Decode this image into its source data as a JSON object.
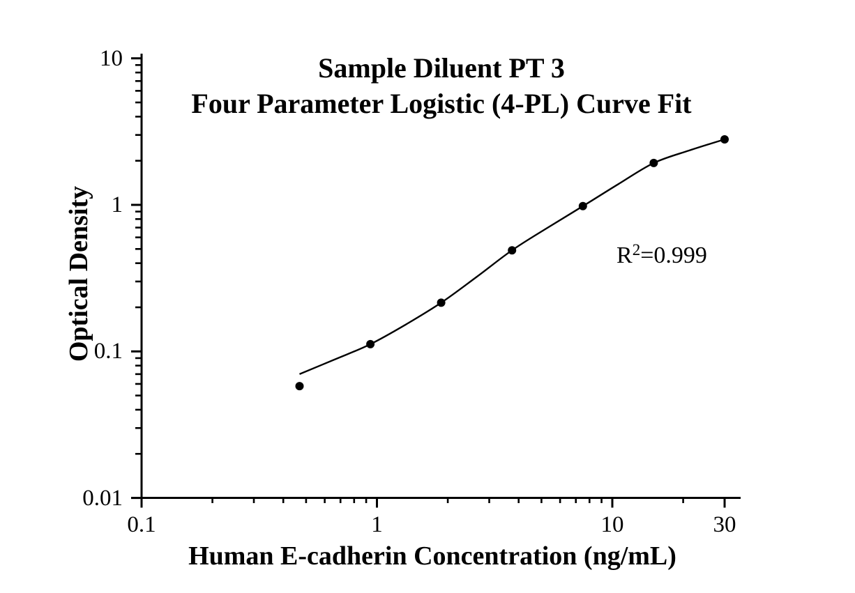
{
  "figure": {
    "background": "#ffffff",
    "ink_color": "#000000"
  },
  "chart_data": {
    "type": "scatter",
    "title_line1": "Sample Diluent PT 3",
    "title_line2": "Four Parameter Logistic (4-PL) Curve Fit",
    "xlabel": "Human E-cadherin Concentration (ng/mL)",
    "ylabel": "Optical Density",
    "x_scale": "log",
    "y_scale": "log",
    "xlim": [
      0.1,
      35
    ],
    "ylim": [
      0.01,
      10
    ],
    "grid": false,
    "x_ticks": [
      {
        "value": 0.1,
        "label": "0.1"
      },
      {
        "value": 1,
        "label": "1"
      },
      {
        "value": 10,
        "label": "10"
      },
      {
        "value": 30,
        "label": "30"
      }
    ],
    "y_ticks": [
      {
        "value": 0.01,
        "label": "0.01"
      },
      {
        "value": 0.1,
        "label": "0.1"
      },
      {
        "value": 1,
        "label": "1"
      },
      {
        "value": 10,
        "label": "10"
      }
    ],
    "x_minor_ticks": [
      0.2,
      0.3,
      0.4,
      0.5,
      0.6,
      0.7,
      0.8,
      0.9,
      2,
      3,
      4,
      5,
      6,
      7,
      8,
      9,
      20
    ],
    "y_minor_ticks": [
      0.02,
      0.03,
      0.04,
      0.05,
      0.06,
      0.07,
      0.08,
      0.09,
      0.2,
      0.3,
      0.4,
      0.5,
      0.6,
      0.7,
      0.8,
      0.9,
      2,
      3,
      4,
      5,
      6,
      7,
      8,
      9
    ],
    "annotation": {
      "base": "R",
      "superscript": "2",
      "rest": "=0.999"
    },
    "points": [
      {
        "x": 0.469,
        "od": 0.058
      },
      {
        "x": 0.938,
        "od": 0.112
      },
      {
        "x": 1.875,
        "od": 0.215
      },
      {
        "x": 3.75,
        "od": 0.49
      },
      {
        "x": 7.5,
        "od": 0.98
      },
      {
        "x": 15,
        "od": 1.93
      },
      {
        "x": 30,
        "od": 2.8
      }
    ],
    "fit_curve_samples": [
      [
        0.469,
        0.07
      ],
      [
        0.66,
        0.088
      ],
      [
        0.938,
        0.112
      ],
      [
        1.33,
        0.153
      ],
      [
        1.875,
        0.215
      ],
      [
        2.65,
        0.322
      ],
      [
        3.75,
        0.49
      ],
      [
        5.3,
        0.697
      ],
      [
        7.5,
        0.98
      ],
      [
        10.6,
        1.385
      ],
      [
        15,
        1.93
      ],
      [
        21.2,
        2.35
      ],
      [
        30,
        2.8
      ]
    ]
  }
}
